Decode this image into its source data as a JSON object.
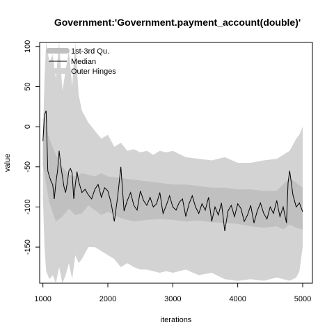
{
  "chart_data": {
    "type": "area",
    "title": "Government:'Government.payment_account(double)'",
    "xlabel": "iterations",
    "ylabel": "value",
    "xlim": [
      950,
      5150
    ],
    "ylim": [
      -195,
      105
    ],
    "x_ticks": [
      1000,
      2000,
      3000,
      4000,
      5000
    ],
    "x_tick_labels": [
      "1000",
      "2000",
      "3000",
      "4000",
      "5000"
    ],
    "y_ticks": [
      -150,
      -100,
      -50,
      0,
      50,
      100
    ],
    "y_tick_labels": [
      "-150",
      "-100",
      "-50",
      "0",
      "50",
      "100"
    ],
    "grid": false,
    "legend_position": "top-left",
    "colors": {
      "outer_hinges": "#d3d3d3",
      "quartiles": "#c0c0c0",
      "median": "#000000"
    },
    "legend": [
      {
        "label": "1st-3rd Qu."
      },
      {
        "label": "Median"
      },
      {
        "label": "Outer Hinges"
      }
    ],
    "series": [
      {
        "name": "Median",
        "x": [
          1000,
          1025,
          1050,
          1075,
          1100,
          1125,
          1150,
          1175,
          1200,
          1225,
          1250,
          1275,
          1300,
          1325,
          1350,
          1375,
          1400,
          1425,
          1450,
          1475,
          1500,
          1525,
          1550,
          1600,
          1650,
          1700,
          1750,
          1800,
          1850,
          1900,
          1950,
          2000,
          2050,
          2100,
          2150,
          2200,
          2250,
          2300,
          2350,
          2400,
          2450,
          2500,
          2550,
          2600,
          2650,
          2700,
          2750,
          2800,
          2850,
          2900,
          2950,
          3000,
          3050,
          3100,
          3150,
          3200,
          3250,
          3300,
          3350,
          3400,
          3450,
          3500,
          3550,
          3600,
          3650,
          3700,
          3750,
          3800,
          3850,
          3900,
          3950,
          4000,
          4050,
          4100,
          4150,
          4200,
          4250,
          4300,
          4350,
          4400,
          4450,
          4500,
          4550,
          4600,
          4650,
          4700,
          4750,
          4775,
          4800,
          4850,
          4900,
          4950,
          5000
        ],
        "values": [
          -18,
          15,
          20,
          -55,
          -62,
          -68,
          -72,
          -90,
          -70,
          -55,
          -30,
          -48,
          -62,
          -75,
          -82,
          -70,
          -55,
          -52,
          -58,
          -90,
          -72,
          -56,
          -68,
          -82,
          -78,
          -85,
          -90,
          -78,
          -72,
          -88,
          -76,
          -80,
          -95,
          -118,
          -88,
          -50,
          -105,
          -92,
          -82,
          -98,
          -104,
          -80,
          -92,
          -98,
          -88,
          -100,
          -96,
          -82,
          -108,
          -98,
          -86,
          -100,
          -104,
          -94,
          -90,
          -112,
          -96,
          -86,
          -100,
          -108,
          -96,
          -104,
          -88,
          -118,
          -100,
          -110,
          -95,
          -130,
          -105,
          -98,
          -112,
          -96,
          -102,
          -118,
          -110,
          -98,
          -120,
          -105,
          -95,
          -108,
          -115,
          -100,
          -108,
          -92,
          -112,
          -100,
          -120,
          -70,
          -55,
          -85,
          -100,
          -95,
          -106
        ]
      },
      {
        "name": "1st-3rd Qu.",
        "x": [
          1000,
          1100,
          1200,
          1300,
          1400,
          1500,
          1600,
          1700,
          1800,
          1900,
          2000,
          2200,
          2400,
          2600,
          2800,
          3000,
          3200,
          3400,
          3600,
          3800,
          4000,
          4200,
          4400,
          4600,
          4700,
          4800,
          4900,
          5000
        ],
        "low": [
          -48,
          -95,
          -118,
          -112,
          -102,
          -110,
          -108,
          -98,
          -104,
          -110,
          -106,
          -114,
          -118,
          -116,
          -115,
          -116,
          -118,
          -117,
          -119,
          -120,
          -121,
          -124,
          -126,
          -124,
          -128,
          -122,
          -126,
          -128
        ],
        "high": [
          12,
          -15,
          -35,
          -50,
          -60,
          -62,
          -58,
          -60,
          -62,
          -58,
          -62,
          -64,
          -66,
          -68,
          -70,
          -72,
          -72,
          -74,
          -76,
          -76,
          -78,
          -78,
          -80,
          -80,
          -72,
          -64,
          -70,
          -76
        ]
      },
      {
        "name": "Outer Hinges",
        "x": [
          1000,
          1025,
          1050,
          1100,
          1150,
          1200,
          1250,
          1300,
          1350,
          1400,
          1450,
          1500,
          1550,
          1600,
          1700,
          1800,
          1900,
          2000,
          2100,
          2200,
          2300,
          2400,
          2500,
          2600,
          2700,
          2800,
          2900,
          3000,
          3200,
          3400,
          3600,
          3800,
          4000,
          4200,
          4400,
          4600,
          4800,
          4900,
          4950,
          5000
        ],
        "low": [
          -90,
          -150,
          -180,
          -190,
          -185,
          -195,
          -175,
          -195,
          -185,
          -170,
          -190,
          -160,
          -170,
          -165,
          -150,
          -150,
          -155,
          -160,
          -165,
          -175,
          -170,
          -175,
          -178,
          -178,
          -180,
          -182,
          -180,
          -182,
          -178,
          -185,
          -182,
          -190,
          -192,
          -190,
          -192,
          -188,
          -192,
          -188,
          -180,
          -150
        ],
        "high": [
          -10,
          60,
          105,
          80,
          90,
          60,
          105,
          45,
          70,
          95,
          50,
          105,
          40,
          20,
          5,
          -5,
          -15,
          -10,
          -25,
          -20,
          -30,
          -28,
          -32,
          -30,
          -35,
          -30,
          -32,
          -30,
          -38,
          -40,
          -42,
          -38,
          -45,
          -45,
          -42,
          -40,
          -30,
          -15,
          -10,
          0
        ]
      }
    ]
  }
}
